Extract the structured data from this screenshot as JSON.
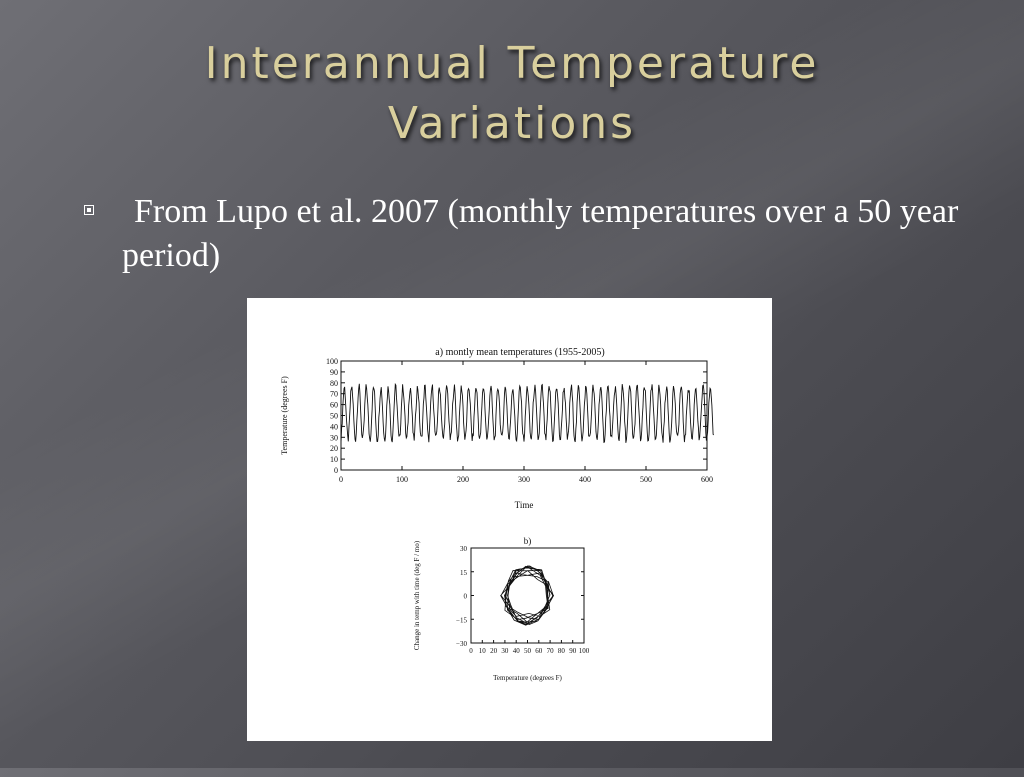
{
  "slide": {
    "title_line1": "Interannual Temperature",
    "title_line2": "Variations",
    "bullet": "From Lupo et al. 2007 (monthly temperatures over a 50 year period)"
  },
  "colors": {
    "title": "#d9cf9d",
    "text": "#ffffff",
    "figure_bg": "#ffffff",
    "ink": "#111111"
  },
  "chart_data": [
    {
      "type": "line",
      "title": "a) montly mean temperatures (1955-2005)",
      "xlabel": "Time",
      "ylabel": "Temperature (degrees F)",
      "xlim": [
        0,
        600
      ],
      "ylim": [
        0,
        100
      ],
      "x_ticks": [
        "0",
        "100",
        "200",
        "300",
        "400",
        "500",
        "600"
      ],
      "y_ticks": [
        "0",
        "10",
        "20",
        "30",
        "40",
        "50",
        "60",
        "70",
        "80",
        "90",
        "100"
      ],
      "grid": false,
      "series": [
        {
          "description_only": false,
          "months": 612,
          "period_months": 12,
          "mean": 52,
          "amplitude": 24,
          "min_approx": 20,
          "max_approx": 85
        }
      ]
    },
    {
      "type": "scatter",
      "title": "b)",
      "xlabel": "Temperature (degrees F)",
      "ylabel": "Change in temp with time (deg F / mo)",
      "xlim": [
        0,
        100
      ],
      "ylim": [
        -30,
        30
      ],
      "x_ticks": [
        "0",
        "10",
        "20",
        "30",
        "40",
        "50",
        "60",
        "70",
        "80",
        "90",
        "100"
      ],
      "y_ticks": [
        "30",
        "15",
        "0",
        "-15",
        "-30"
      ],
      "grid": false,
      "series": [
        {
          "center_x": 50,
          "center_y": 0,
          "radius_x": 22,
          "radius_y": 15
        }
      ]
    }
  ]
}
